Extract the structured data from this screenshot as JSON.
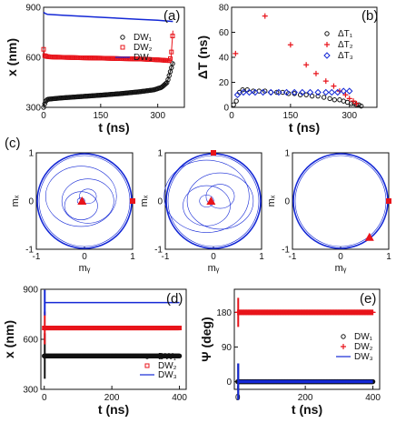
{
  "figure": {
    "panel_labels": [
      "(a)",
      "(b)",
      "(c)",
      "(d)",
      "(e)"
    ]
  },
  "colors": {
    "black": "#111111",
    "red": "#e8141b",
    "blue": "#1428d6",
    "gray": "#888888"
  },
  "chart_data": [
    {
      "panel": "(a)",
      "type": "line",
      "xlabel": "t (ns)",
      "ylabel": "x (nm)",
      "xlim": [
        0,
        370
      ],
      "ylim": [
        300,
        900
      ],
      "xticks": [
        "0",
        "150",
        "300"
      ],
      "yticks": [
        "300",
        "600",
        "900"
      ],
      "legend": {
        "placement": "center-right"
      },
      "series": [
        {
          "name": "DW₁",
          "color": "black",
          "marker": "circle",
          "x": [
            0,
            5,
            10,
            25,
            50,
            100,
            150,
            200,
            250,
            290,
            310,
            325,
            335,
            340
          ],
          "y": [
            300,
            335,
            348,
            352,
            357,
            365,
            373,
            382,
            393,
            405,
            420,
            450,
            530,
            570
          ]
        },
        {
          "name": "DW₂",
          "color": "red",
          "marker": "square",
          "x": [
            0,
            3,
            8,
            20,
            50,
            100,
            150,
            200,
            250,
            300,
            330,
            335,
            340
          ],
          "y": [
            648,
            610,
            605,
            602,
            600,
            597,
            595,
            592,
            590,
            585,
            580,
            600,
            760
          ]
        },
        {
          "name": "DW₃",
          "color": "blue",
          "marker": "line",
          "x": [
            0,
            5,
            10,
            50,
            100,
            150,
            200,
            250,
            300,
            340
          ],
          "y": [
            870,
            862,
            858,
            852,
            846,
            840,
            834,
            828,
            822,
            815
          ]
        }
      ]
    },
    {
      "panel": "(b)",
      "type": "scatter",
      "xlabel": "t (ns)",
      "ylabel": "ΔT (ns)",
      "xlim": [
        0,
        370
      ],
      "ylim": [
        0,
        80
      ],
      "xticks": [
        "0",
        "150",
        "300"
      ],
      "yticks": [
        "0",
        "20",
        "40",
        "60",
        "80"
      ],
      "legend": {
        "placement": "top-right"
      },
      "series": [
        {
          "name": "ΔT₁",
          "color": "black",
          "marker": "circle",
          "x": [
            5,
            12,
            20,
            28,
            40,
            55,
            70,
            85,
            100,
            115,
            130,
            145,
            160,
            175,
            190,
            205,
            220,
            235,
            250,
            262,
            275,
            285,
            295,
            305,
            312,
            318,
            324,
            330
          ],
          "y": [
            2,
            5,
            12,
            14,
            14,
            13,
            13,
            13,
            12,
            12,
            12,
            11,
            11,
            10,
            10,
            9,
            9,
            8,
            7,
            6,
            6,
            5,
            4,
            3,
            3,
            2,
            2,
            1
          ]
        },
        {
          "name": "ΔT₂",
          "color": "red",
          "marker": "plus",
          "x": [
            10,
            85,
            150,
            190,
            215,
            240,
            260,
            275,
            290,
            300,
            310,
            318
          ],
          "y": [
            43,
            73,
            50,
            34,
            27,
            21,
            17,
            13,
            10,
            7,
            5,
            3
          ]
        },
        {
          "name": "ΔT₃",
          "color": "blue",
          "marker": "diamond",
          "x": [
            15,
            30,
            45,
            60,
            80,
            100,
            120,
            140,
            160,
            180,
            200,
            220,
            240,
            255,
            270,
            285,
            300
          ],
          "y": [
            10,
            12,
            12,
            12,
            12,
            12,
            12,
            12,
            12,
            12,
            12,
            12,
            12,
            12,
            12,
            13,
            13
          ]
        }
      ]
    },
    {
      "panel": "(c)",
      "type": "line",
      "xlabel": "mᵧ",
      "ylabel": "mₓ",
      "xticks": [
        "-1",
        "0",
        "1"
      ],
      "yticks": [
        "-1",
        "0",
        "1"
      ],
      "xlim": [
        -1,
        1
      ],
      "ylim": [
        -1,
        1
      ],
      "subplots": [
        {
          "triangle": [
            -0.05,
            0
          ],
          "square": [
            1,
            0
          ]
        },
        {
          "triangle": [
            -0.05,
            0
          ],
          "square": [
            0,
            1
          ]
        },
        {
          "triangle": [
            0.6,
            -0.75
          ],
          "square": [
            1,
            0
          ]
        }
      ]
    },
    {
      "panel": "(d)",
      "type": "line",
      "xlabel": "t (ns)",
      "ylabel": "x (nm)",
      "xlim": [
        -10,
        420
      ],
      "ylim": [
        300,
        900
      ],
      "xticks": [
        "0",
        "200",
        "400"
      ],
      "yticks": [
        "300",
        "600",
        "900"
      ],
      "legend": {
        "placement": "bottom-right"
      },
      "series": [
        {
          "name": "DW₁",
          "color": "black",
          "marker": "circle",
          "x": [
            0,
            400
          ],
          "y": [
            500,
            500
          ]
        },
        {
          "name": "DW₂",
          "color": "red",
          "marker": "square",
          "x": [
            0,
            400
          ],
          "y": [
            668,
            668
          ]
        },
        {
          "name": "DW₃",
          "color": "blue",
          "marker": "line",
          "x": [
            0,
            400
          ],
          "y": [
            820,
            820
          ]
        }
      ]
    },
    {
      "panel": "(e)",
      "type": "line",
      "xlabel": "t (ns)",
      "ylabel": "Ψ (deg)",
      "xlim": [
        -10,
        420
      ],
      "ylim": [
        -20,
        240
      ],
      "xticks": [
        "0",
        "200",
        "400"
      ],
      "yticks": [
        "0",
        "90",
        "180"
      ],
      "legend": {
        "placement": "center-right"
      },
      "series": [
        {
          "name": "DW₁",
          "color": "black",
          "marker": "circle",
          "x": [
            0,
            400
          ],
          "y": [
            0,
            0
          ]
        },
        {
          "name": "DW₂",
          "color": "red",
          "marker": "plus",
          "x": [
            0,
            400
          ],
          "y": [
            180,
            180
          ]
        },
        {
          "name": "DW₃",
          "color": "blue",
          "marker": "line",
          "x": [
            0,
            400
          ],
          "y": [
            0,
            0
          ]
        }
      ]
    }
  ]
}
